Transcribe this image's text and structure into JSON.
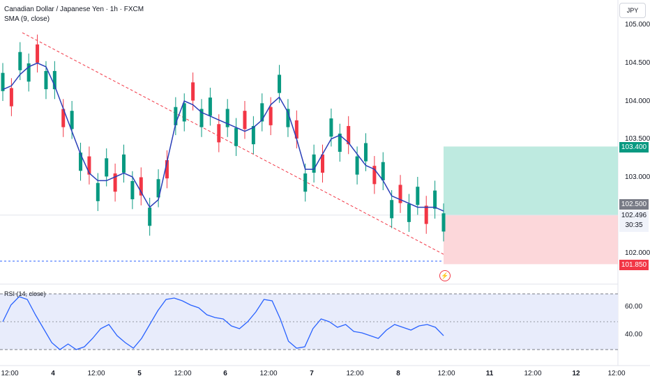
{
  "header": {
    "title": "Canadian Dollar / Japanese Yen · 1h · FXCM",
    "sma_label": "SMA (9, close)",
    "currency": "JPY"
  },
  "rsi": {
    "label": "RSI (14, close)",
    "ticks": [
      "60.00",
      "40.00"
    ],
    "upper": 70,
    "middle": 50,
    "lower": 30
  },
  "price_axis": {
    "ticks": [
      "105.000",
      "104.500",
      "104.000",
      "103.500",
      "103.000",
      "102.000"
    ]
  },
  "time_axis": {
    "ticks": [
      "12:00",
      "4",
      "12:00",
      "5",
      "12:00",
      "6",
      "12:00",
      "7",
      "12:00",
      "8",
      "12:00",
      "11",
      "12:00",
      "12",
      "12:00"
    ]
  },
  "position": {
    "take_profit": "103.400",
    "entry": "102.500",
    "stop_loss": "101.850",
    "current_price": "102.496",
    "countdown": "30:35"
  },
  "colors": {
    "up": "#089981",
    "down": "#f23645",
    "sma": "#2a3fb8",
    "rsi": "#2962ff",
    "profit": "#b7e8dd",
    "loss": "#fcd3d6"
  },
  "chart_data": {
    "type": "candlestick",
    "title": "Canadian Dollar / Japanese Yen · 1h · FXCM",
    "ylim": [
      101.8,
      105.2
    ],
    "grid": false,
    "series": [
      {
        "name": "SMA (9, close)",
        "values": [
          104.15,
          104.2,
          104.35,
          104.45,
          104.5,
          104.45,
          104.2,
          103.9,
          103.6,
          103.3,
          103.05,
          102.95,
          102.95,
          103.0,
          103.05,
          103.0,
          102.8,
          102.6,
          102.7,
          103.2,
          103.7,
          104.0,
          103.95,
          103.85,
          103.8,
          103.75,
          103.7,
          103.65,
          103.6,
          103.65,
          103.75,
          103.95,
          104.05,
          103.85,
          103.5,
          103.1,
          103.1,
          103.3,
          103.5,
          103.55,
          103.45,
          103.3,
          103.15,
          103.1,
          102.95,
          102.75,
          102.7,
          102.65,
          102.6,
          102.6,
          102.6,
          102.55
        ]
      },
      {
        "name": "RSI (14, close)",
        "values": [
          50,
          62,
          68,
          66,
          55,
          45,
          35,
          30,
          34,
          30,
          32,
          38,
          45,
          48,
          40,
          35,
          31,
          38,
          48,
          58,
          66,
          67,
          65,
          62,
          60,
          55,
          53,
          52,
          47,
          45,
          50,
          57,
          66,
          65,
          52,
          36,
          31,
          32,
          45,
          52,
          50,
          46,
          48,
          43,
          42,
          40,
          38,
          44,
          48,
          46,
          44,
          47,
          48,
          46,
          40
        ]
      }
    ]
  }
}
